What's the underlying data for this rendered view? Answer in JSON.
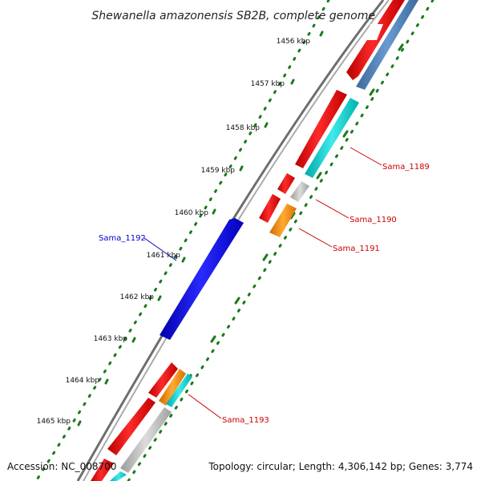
{
  "title": "Shewanella amazonensis SB2B, complete genome",
  "footer": {
    "accession": "Accession: NC_008700",
    "summary": "Topology: circular; Length: 4,306,142 bp; Genes: 3,774"
  },
  "ticks": [
    "1456 kbp",
    "1457 kbp",
    "1458 kbp",
    "1459 kbp",
    "1460 kbp",
    "1461 kbp",
    "1462 kbp",
    "1463 kbp",
    "1464 kbp",
    "1465 kbp"
  ],
  "gene_labels": [
    {
      "id": "sama_1189",
      "text": "Sama_1189",
      "color": "#cc0000"
    },
    {
      "id": "sama_1190",
      "text": "Sama_1190",
      "color": "#cc0000"
    },
    {
      "id": "sama_1191",
      "text": "Sama_1191",
      "color": "#cc0000"
    },
    {
      "id": "sama_1192",
      "text": "Sama_1192",
      "color": "#0000cc"
    },
    {
      "id": "sama_1193",
      "text": "Sama_1193",
      "color": "#cc0000"
    }
  ],
  "colors": {
    "backbone": "#777777",
    "cds": "#ee0000",
    "forward_gene": "#0000ee",
    "rna": "#00d0d0",
    "other": "#ff8800",
    "pseudo": "#bbbbbb",
    "blast": "#4f7fb5",
    "tick": "#1a7a1a"
  }
}
